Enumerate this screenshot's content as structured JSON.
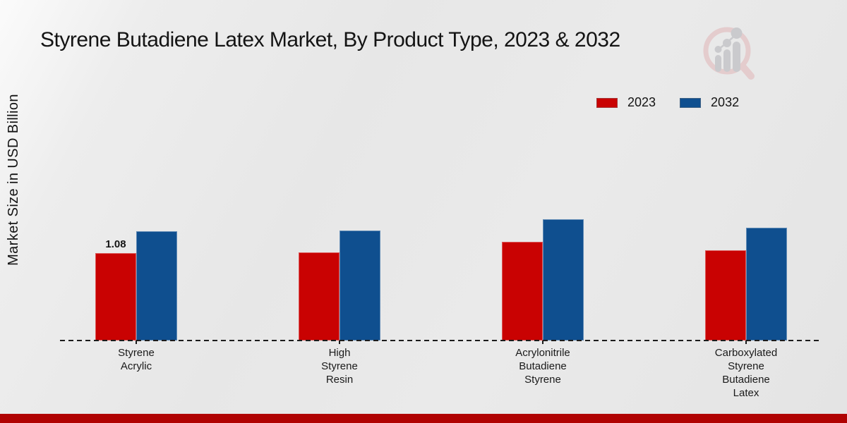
{
  "title": "Styrene Butadiene Latex Market, By Product Type, 2023 & 2032",
  "y_axis_label": "Market Size in USD Billion",
  "legend": [
    {
      "label": "2023",
      "color": "#c90202"
    },
    {
      "label": "2032",
      "color": "#0f4f8f"
    }
  ],
  "colors": {
    "red_series": "#c90202",
    "blue_series": "#0f4f8f",
    "footer_strip": "#b00202",
    "logo_ring_pink": "#e4c9cb",
    "logo_gray": "#c7c7cb"
  },
  "chart_data": {
    "type": "bar",
    "categories": [
      [
        "Styrene",
        "Acrylic"
      ],
      [
        "High",
        "Styrene",
        "Resin"
      ],
      [
        "Acrylonitrile",
        "Butadiene",
        "Styrene"
      ],
      [
        "Carboxylated",
        "Styrene",
        "Butadiene",
        "Latex"
      ]
    ],
    "series": [
      {
        "name": "2023",
        "color": "#c90202",
        "values": [
          1.08,
          1.09,
          1.22,
          1.11
        ]
      },
      {
        "name": "2032",
        "color": "#0f4f8f",
        "values": [
          1.35,
          1.36,
          1.5,
          1.39
        ]
      }
    ],
    "value_labels": [
      {
        "series": "2023",
        "category_index": 0,
        "text": "1.08"
      }
    ],
    "title": "Styrene Butadiene Latex Market, By Product Type, 2023 & 2032",
    "xlabel": "",
    "ylabel": "Market Size in USD Billion",
    "ylim": [
      0,
      2.0
    ],
    "grid": false,
    "legend_position": "top-right",
    "baseline_style": "dashed"
  }
}
